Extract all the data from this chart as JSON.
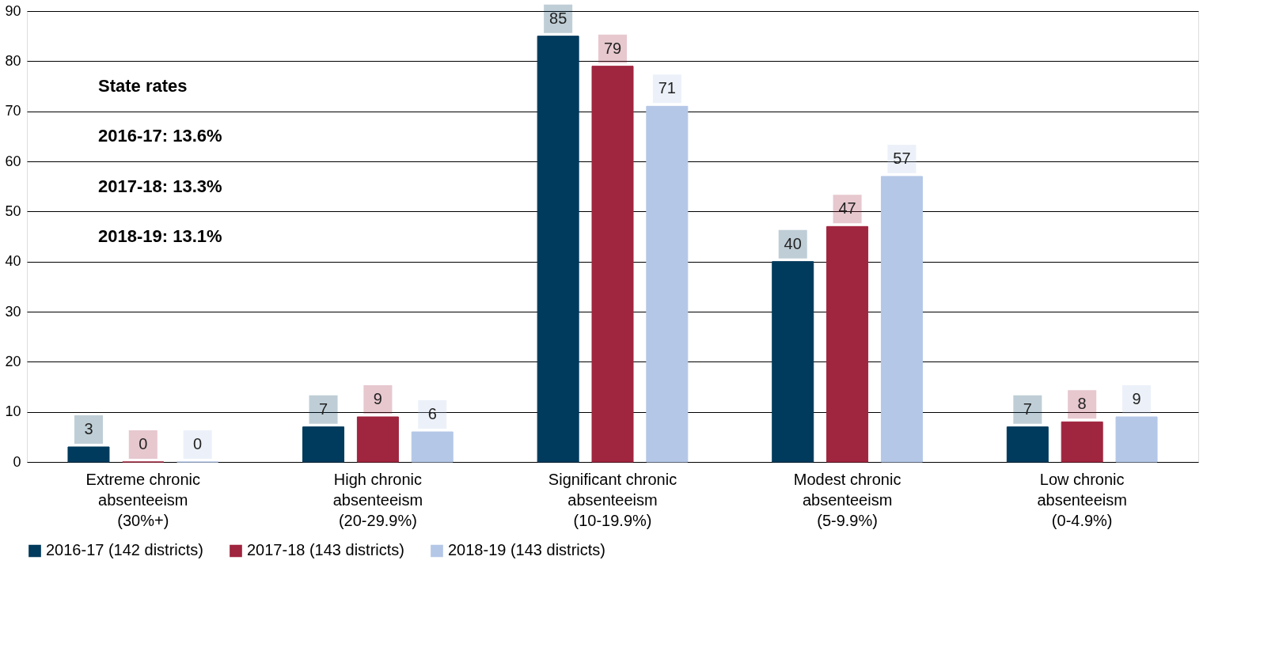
{
  "chart_data": {
    "type": "bar",
    "categories": [
      "Extreme chronic\nabsenteeism\n(30%+)",
      "High chronic\nabsenteeism\n(20-29.9%)",
      "Significant chronic\nabsenteeism\n(10-19.9%)",
      "Modest chronic\nabsenteeism\n(5-9.9%)",
      "Low chronic\nabsenteeism\n(0-4.9%)"
    ],
    "series": [
      {
        "name": "2016-17 (142 districts)",
        "color": "#003a5c",
        "values": [
          3,
          7,
          85,
          40,
          7
        ]
      },
      {
        "name": "2017-18 (143 districts)",
        "color": "#a0253f",
        "values": [
          0,
          9,
          79,
          47,
          8
        ]
      },
      {
        "name": "2018-19 (143 districts)",
        "color": "#b4c7e7",
        "values": [
          0,
          6,
          71,
          57,
          9
        ]
      }
    ],
    "ylim": [
      0,
      90
    ],
    "yticks": [
      0,
      10,
      20,
      30,
      40,
      50,
      60,
      70,
      80,
      90
    ],
    "grid": "y",
    "legend": "bottom",
    "data_labels": true,
    "annotations": [
      "State rates",
      "2016-17: 13.6%",
      "2017-18: 13.3%",
      "2018-19: 13.1%"
    ]
  }
}
